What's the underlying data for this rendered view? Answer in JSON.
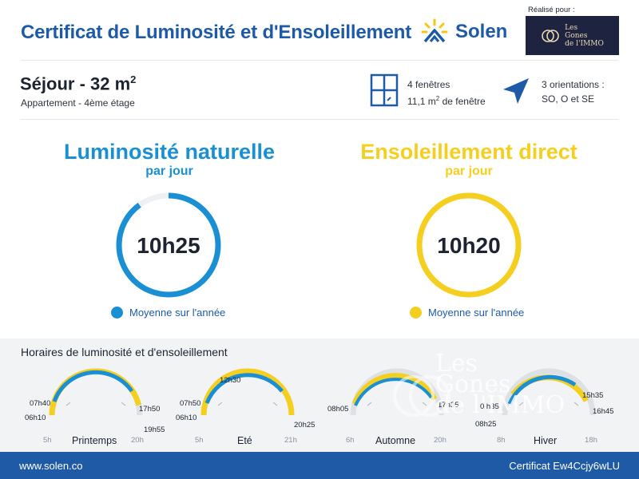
{
  "header": {
    "title": "Certificat de Luminosité et d'Ensoleillement",
    "brand_name": "Solen",
    "realise_pour": "Réalisé pour :",
    "partner_logo_text": "Les\nGones\nde l'IMMO"
  },
  "room": {
    "title": "Séjour - 32 m",
    "title_exp": "2",
    "subtitle": "Appartement - 4ème étage"
  },
  "windows": {
    "icon": "window-icon",
    "line1": "4 fenêtres",
    "line2_prefix": "11,1 m",
    "line2_exp": "2",
    "line2_suffix": " de fenêtre"
  },
  "orientations": {
    "icon": "location-arrow-icon",
    "line1": "3 orientations :",
    "line2": "SO, O et SE"
  },
  "luminosite": {
    "title": "Luminosité naturelle",
    "subtitle": "par jour",
    "value": "10h25",
    "fill_fraction": 0.9,
    "legend": "Moyenne sur l'année",
    "color": "#1b8fd3"
  },
  "ensoleillement": {
    "title": "Ensoleillement direct",
    "subtitle": "par jour",
    "value": "10h20",
    "fill_fraction": 1.0,
    "legend": "Moyenne sur l'année",
    "color": "#f5cf1f"
  },
  "horaires": {
    "title": "Horaires de luminosité et d'ensoleillement",
    "seasons": [
      {
        "name": "Printemps",
        "axis_start": "5h",
        "axis_end": "20h",
        "labels_left": [
          "07h40",
          "06h10"
        ],
        "labels_right": [
          "17h50",
          "19h55"
        ],
        "labels_top": []
      },
      {
        "name": "Eté",
        "axis_start": "5h",
        "axis_end": "21h",
        "labels_left": [
          "07h50",
          "06h10"
        ],
        "labels_right": [
          "20h25"
        ],
        "labels_top": [
          "12h30"
        ]
      },
      {
        "name": "Automne",
        "axis_start": "6h",
        "axis_end": "20h",
        "labels_left": [
          "08h05"
        ],
        "labels_right": [
          "17h35"
        ],
        "labels_top": []
      },
      {
        "name": "Hiver",
        "axis_start": "8h",
        "axis_end": "18h",
        "labels_left": [
          "0 h35",
          "08h25"
        ],
        "labels_right": [
          "15h35",
          "16h45"
        ],
        "labels_top": []
      }
    ]
  },
  "watermark": {
    "text": "Les\nGones\nde l'IMMO"
  },
  "footer": {
    "website": "www.solen.co",
    "certificat": "Certificat Ew4Ccjy6wLU"
  },
  "colors": {
    "brand_blue": "#1f5aa6",
    "light_blue": "#1b8fd3",
    "yellow": "#f5cf1f",
    "track_grey": "#dde1e5"
  }
}
